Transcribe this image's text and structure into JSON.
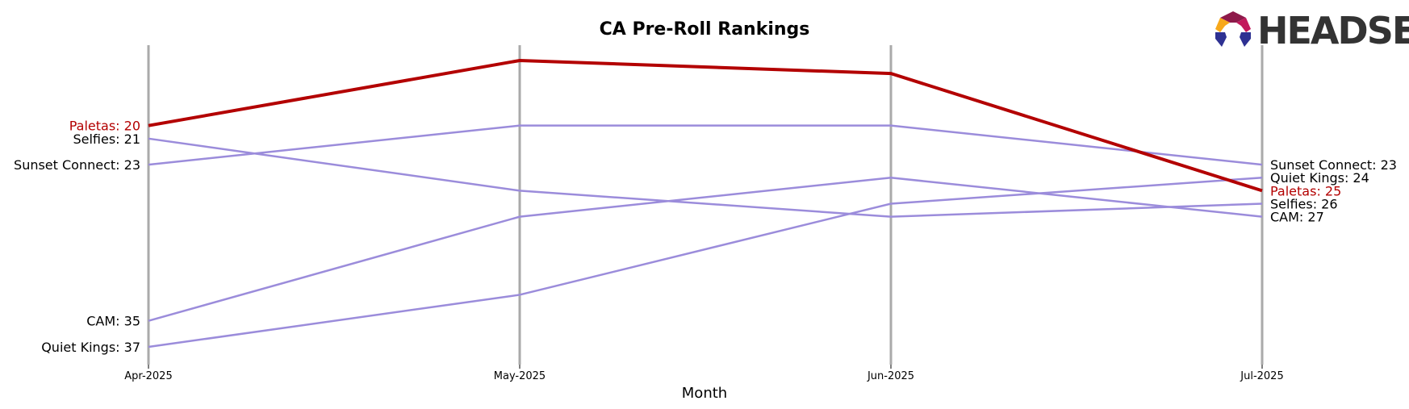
{
  "chart_data": {
    "type": "line",
    "title": "CA Pre-Roll Rankings",
    "xlabel": "Month",
    "ylabel": "",
    "x": [
      "Apr-2025",
      "May-2025",
      "Jun-2025",
      "Jul-2025"
    ],
    "y_inverted": true,
    "ylim": [
      39,
      14
    ],
    "grid": "vertical at each month",
    "highlight_color": "#b30000",
    "series_color": "#9b8cdb",
    "gridline_color": "#aaaaaa",
    "series": [
      {
        "name": "Paletas",
        "values": [
          20,
          15,
          16,
          25
        ],
        "highlight": true,
        "start_label": "Paletas: 20",
        "end_label": "Paletas: 25"
      },
      {
        "name": "Selfies",
        "values": [
          21,
          25,
          27,
          26
        ],
        "highlight": false,
        "start_label": "Selfies: 21",
        "end_label": "Selfies: 26"
      },
      {
        "name": "Sunset Connect",
        "values": [
          23,
          20,
          20,
          23
        ],
        "highlight": false,
        "start_label": "Sunset Connect: 23",
        "end_label": "Sunset Connect: 23"
      },
      {
        "name": "CAM",
        "values": [
          35,
          27,
          24,
          27
        ],
        "highlight": false,
        "start_label": "CAM: 35",
        "end_label": "CAM: 27"
      },
      {
        "name": "Quiet Kings",
        "values": [
          37,
          33,
          26,
          24
        ],
        "highlight": false,
        "start_label": "Quiet Kings: 37",
        "end_label": "Quiet Kings: 24"
      }
    ]
  },
  "logo": {
    "text": "HEADSET",
    "colors": [
      "#e8532b",
      "#c2185b",
      "#8e1a4a",
      "#2e3192",
      "#f7a81b"
    ]
  }
}
